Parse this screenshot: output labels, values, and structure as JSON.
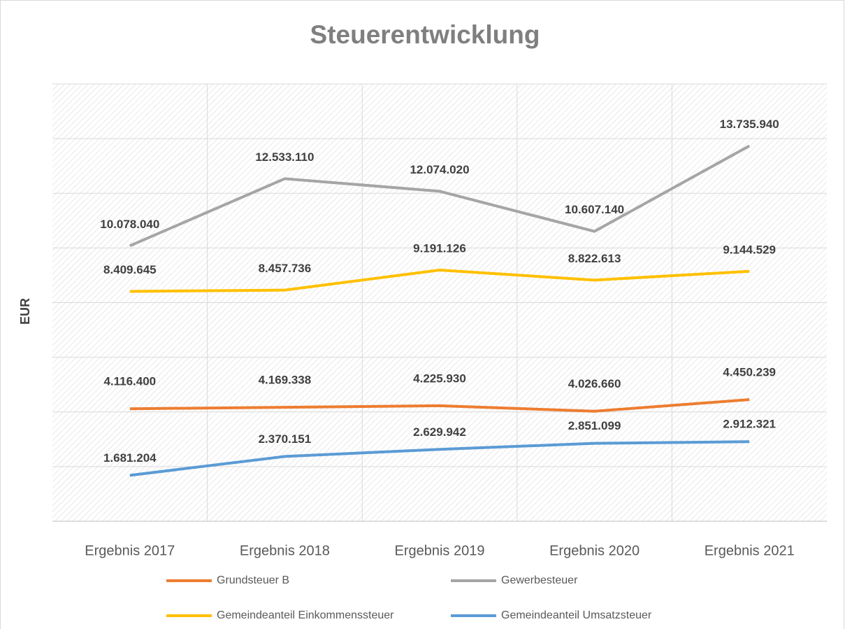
{
  "chart_data": {
    "type": "line",
    "title": "Steuerentwicklung",
    "y_label": "EUR",
    "categories": [
      "Ergebnis 2017",
      "Ergebnis 2018",
      "Ergebnis 2019",
      "Ergebnis 2020",
      "Ergebnis 2021"
    ],
    "series": [
      {
        "name": "Grundsteuer B",
        "color": "#ed7d31",
        "values": [
          4116400,
          4169338,
          4225930,
          4026660,
          4450239
        ],
        "value_labels": [
          "4.116.400",
          "4.169.338",
          "4.225.930",
          "4.026.660",
          "4.450.239"
        ]
      },
      {
        "name": "Gewerbesteuer",
        "color": "#a5a5a5",
        "values": [
          10078040,
          12533110,
          12074020,
          10607140,
          13735940
        ],
        "value_labels": [
          "10.078.040",
          "12.533.110",
          "12.074.020",
          "10.607.140",
          "13.735.940"
        ]
      },
      {
        "name": "Gemeindeanteil Einkommenssteuer",
        "color": "#ffc000",
        "values": [
          8409645,
          8457736,
          9191126,
          8822613,
          9144529
        ],
        "value_labels": [
          "8.409.645",
          "8.457.736",
          "9.191.126",
          "8.822.613",
          "9.144.529"
        ]
      },
      {
        "name": "Gemeindeanteil Umsatzsteuer",
        "color": "#5b9bd5",
        "values": [
          1681204,
          2370151,
          2629942,
          2851099,
          2912321
        ],
        "value_labels": [
          "1.681.204",
          "2.370.151",
          "2.629.942",
          "2.851.099",
          "2.912.321"
        ]
      }
    ],
    "ylim": [
      0,
      16000000
    ],
    "yticks": [
      0,
      2000000,
      4000000,
      6000000,
      8000000,
      10000000,
      12000000,
      14000000,
      16000000
    ],
    "grid": true,
    "legend": "bottom"
  }
}
